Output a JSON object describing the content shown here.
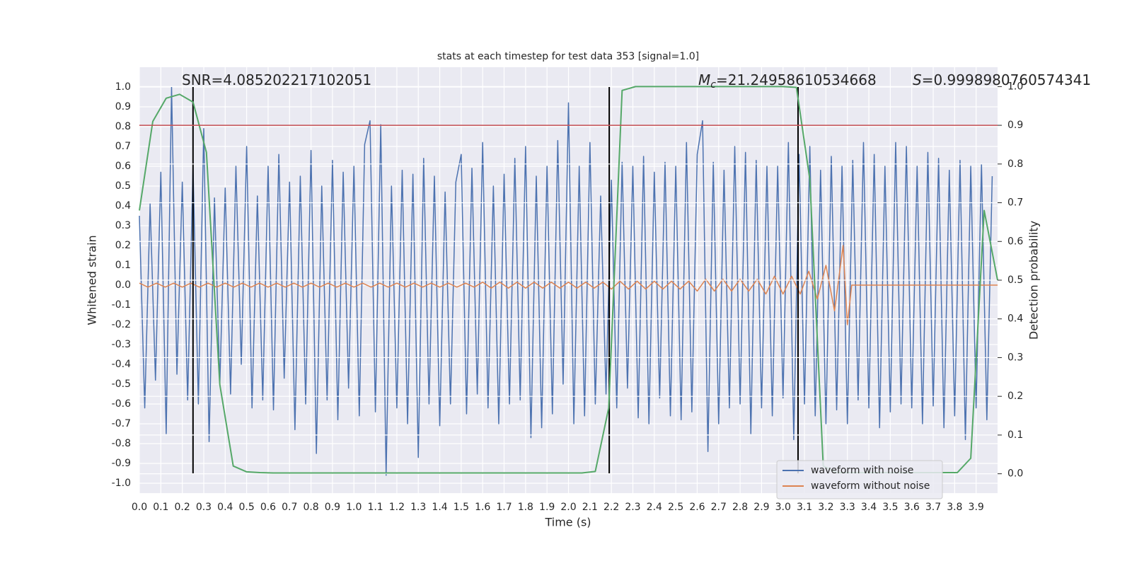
{
  "chart_data": {
    "type": "line",
    "title": "stats at each timestep for test data 353 [signal=1.0]",
    "xlabel": "Time (s)",
    "ylabel": "Whitened strain",
    "y2label": "Detection probability",
    "xlim": [
      0,
      4.0
    ],
    "ylim": [
      -1.05,
      1.1
    ],
    "y2lim": [
      -0.05,
      1.05
    ],
    "grid": true,
    "legend": "lower right",
    "xticks": [
      {
        "value": 0,
        "label": "0.0"
      },
      0.1,
      0.2,
      0.3,
      0.4,
      0.5,
      0.6,
      0.7,
      0.8,
      0.9,
      {
        "value": 1,
        "label": "1.0"
      },
      1.1,
      1.2,
      1.3,
      1.4,
      1.5,
      1.6,
      1.7,
      1.8,
      1.9,
      {
        "value": 2,
        "label": "2.0"
      },
      2.1,
      2.2,
      2.3,
      2.4,
      2.5,
      2.6,
      2.7,
      2.8,
      2.9,
      {
        "value": 3,
        "label": "3.0"
      },
      3.1,
      3.2,
      3.3,
      3.4,
      3.5,
      3.6,
      3.7,
      3.8,
      3.9
    ],
    "yticks": [
      {
        "value": -1,
        "label": "-1.0"
      },
      -0.9,
      -0.8,
      -0.7,
      -0.6,
      -0.5,
      -0.4,
      -0.3,
      -0.2,
      -0.1,
      {
        "value": 0,
        "label": "0.0"
      },
      0.1,
      0.2,
      0.3,
      0.4,
      0.5,
      0.6,
      0.7,
      0.8,
      0.9,
      {
        "value": 1,
        "label": "1.0"
      }
    ],
    "y2ticks": [
      {
        "value": 0,
        "label": "0.0"
      },
      0.1,
      0.2,
      0.3,
      0.4,
      0.5,
      0.6,
      0.7,
      0.8,
      0.9,
      {
        "value": 1,
        "label": "1.0"
      }
    ],
    "series": [
      {
        "name": "waveform with noise",
        "color": "#4c72b0",
        "x": [
          0,
          0.025,
          0.05,
          0.075,
          0.1,
          0.125,
          0.15,
          0.175,
          0.2,
          0.225,
          0.25,
          0.275,
          0.3,
          0.325,
          0.35,
          0.375,
          0.4,
          0.425,
          0.45,
          0.475,
          0.5,
          0.525,
          0.55,
          0.575,
          0.6,
          0.625,
          0.65,
          0.675,
          0.7,
          0.725,
          0.75,
          0.775,
          0.8,
          0.825,
          0.85,
          0.875,
          0.9,
          0.925,
          0.95,
          0.975,
          1.0,
          1.025,
          1.05,
          1.075,
          1.1,
          1.125,
          1.15,
          1.175,
          1.2,
          1.225,
          1.25,
          1.275,
          1.3,
          1.325,
          1.35,
          1.375,
          1.4,
          1.425,
          1.45,
          1.475,
          1.5,
          1.525,
          1.55,
          1.575,
          1.6,
          1.625,
          1.65,
          1.675,
          1.7,
          1.725,
          1.75,
          1.775,
          1.8,
          1.825,
          1.85,
          1.875,
          1.9,
          1.925,
          1.95,
          1.975,
          2.0,
          2.025,
          2.05,
          2.075,
          2.1,
          2.125,
          2.15,
          2.175,
          2.2,
          2.225,
          2.25,
          2.275,
          2.3,
          2.325,
          2.35,
          2.375,
          2.4,
          2.425,
          2.45,
          2.475,
          2.5,
          2.525,
          2.55,
          2.575,
          2.6,
          2.625,
          2.65,
          2.675,
          2.7,
          2.725,
          2.75,
          2.775,
          2.8,
          2.825,
          2.85,
          2.875,
          2.9,
          2.925,
          2.95,
          2.975,
          3.0,
          3.025,
          3.05,
          3.075,
          3.1,
          3.125,
          3.15,
          3.175,
          3.2,
          3.225,
          3.25,
          3.275,
          3.3,
          3.325,
          3.35,
          3.375,
          3.4,
          3.425,
          3.45,
          3.475,
          3.5,
          3.525,
          3.55,
          3.575,
          3.6,
          3.625,
          3.65,
          3.675,
          3.7,
          3.725,
          3.75,
          3.775,
          3.8,
          3.825,
          3.85,
          3.875,
          3.9,
          3.925,
          3.95,
          3.975
        ],
        "values": [
          0.35,
          -0.62,
          0.41,
          -0.48,
          0.57,
          -0.75,
          1.0,
          -0.45,
          0.52,
          -0.58,
          0.6,
          -0.6,
          0.79,
          -0.79,
          0.44,
          -0.5,
          0.49,
          -0.55,
          0.6,
          -0.4,
          0.7,
          -0.62,
          0.45,
          -0.58,
          0.6,
          -0.63,
          0.66,
          -0.47,
          0.52,
          -0.73,
          0.55,
          -0.6,
          0.68,
          -0.85,
          0.5,
          -0.58,
          0.63,
          -0.68,
          0.57,
          -0.52,
          0.6,
          -0.66,
          0.71,
          0.83,
          -0.64,
          0.81,
          -0.96,
          0.5,
          -0.62,
          0.58,
          -0.7,
          0.56,
          -0.87,
          0.64,
          -0.6,
          0.55,
          -0.71,
          0.47,
          -0.6,
          0.52,
          0.66,
          -0.65,
          0.59,
          -0.55,
          0.72,
          -0.62,
          0.5,
          -0.7,
          0.56,
          -0.6,
          0.64,
          -0.58,
          0.7,
          -0.77,
          0.55,
          -0.72,
          0.6,
          -0.65,
          0.73,
          -0.5,
          0.92,
          -0.7,
          0.6,
          -0.66,
          0.72,
          -0.6,
          0.45,
          -0.55,
          0.53,
          -0.62,
          0.62,
          -0.52,
          0.6,
          -0.67,
          0.65,
          -0.7,
          0.57,
          -0.57,
          0.62,
          -0.66,
          0.6,
          -0.68,
          0.72,
          -0.64,
          0.66,
          0.83,
          -0.84,
          0.62,
          -0.7,
          0.58,
          -0.62,
          0.7,
          -0.6,
          0.67,
          -0.75,
          0.63,
          -0.62,
          0.6,
          -0.66,
          0.6,
          -0.57,
          0.72,
          -0.78,
          0.66,
          -0.6,
          0.7,
          -0.66,
          0.58,
          -0.7,
          0.65,
          -0.63,
          0.6,
          -0.7,
          0.63,
          -0.58,
          0.72,
          -0.62,
          0.66,
          -0.72,
          0.6,
          -0.64,
          0.72,
          -0.6,
          0.7,
          -0.62,
          0.6,
          -0.7,
          0.67,
          -0.61,
          0.64,
          -0.72,
          0.58,
          -0.66,
          0.63,
          -0.78,
          0.6,
          -0.62,
          0.61,
          -0.68,
          0.55
        ]
      },
      {
        "name": "waveform without noise",
        "color": "#dd8452",
        "x": [
          0,
          0.04,
          0.08,
          0.12,
          0.16,
          0.2,
          0.24,
          0.28,
          0.32,
          0.36,
          0.4,
          0.44,
          0.48,
          0.52,
          0.56,
          0.6,
          0.64,
          0.68,
          0.72,
          0.76,
          0.8,
          0.84,
          0.88,
          0.92,
          0.96,
          1.0,
          1.04,
          1.08,
          1.12,
          1.16,
          1.2,
          1.24,
          1.28,
          1.32,
          1.36,
          1.4,
          1.44,
          1.48,
          1.52,
          1.56,
          1.6,
          1.64,
          1.68,
          1.72,
          1.76,
          1.8,
          1.84,
          1.88,
          1.92,
          1.96,
          2.0,
          2.04,
          2.08,
          2.12,
          2.16,
          2.2,
          2.24,
          2.28,
          2.32,
          2.36,
          2.4,
          2.44,
          2.48,
          2.52,
          2.56,
          2.6,
          2.64,
          2.68,
          2.72,
          2.76,
          2.8,
          2.84,
          2.88,
          2.92,
          2.96,
          3.0,
          3.04,
          3.08,
          3.12,
          3.16,
          3.2,
          3.24,
          3.28,
          3.3,
          3.32,
          4.0
        ],
        "values": [
          0.01,
          -0.01,
          0.01,
          -0.01,
          0.01,
          -0.01,
          0.01,
          -0.01,
          0.01,
          -0.01,
          0.01,
          -0.01,
          0.01,
          -0.01,
          0.01,
          -0.01,
          0.01,
          -0.01,
          0.01,
          -0.01,
          0.01,
          -0.01,
          0.01,
          -0.01,
          0.01,
          -0.01,
          0.01,
          -0.01,
          0.01,
          -0.01,
          0.01,
          -0.01,
          0.01,
          -0.01,
          0.01,
          -0.01,
          0.01,
          -0.01,
          0.01,
          -0.01,
          0.015,
          -0.015,
          0.015,
          -0.015,
          0.015,
          -0.015,
          0.015,
          -0.015,
          0.015,
          -0.015,
          0.015,
          -0.015,
          0.015,
          -0.015,
          0.015,
          -0.02,
          0.02,
          -0.02,
          0.02,
          -0.02,
          0.02,
          -0.02,
          0.02,
          -0.02,
          0.02,
          -0.03,
          0.03,
          -0.03,
          0.03,
          -0.03,
          0.03,
          -0.03,
          0.03,
          -0.045,
          0.045,
          -0.045,
          0.045,
          -0.045,
          0.07,
          -0.07,
          0.1,
          -0.13,
          0.2,
          -0.2,
          0,
          0
        ]
      },
      {
        "color": "#55a868",
        "axis": "y2",
        "x": [
          0,
          0.0625,
          0.125,
          0.1875,
          0.25,
          0.3125,
          0.375,
          0.4375,
          0.5,
          0.5625,
          0.625,
          0.6875,
          0.75,
          0.8125,
          0.875,
          0.9375,
          1.0,
          1.0625,
          1.125,
          1.1875,
          1.25,
          1.3125,
          1.375,
          1.4375,
          1.5,
          1.5625,
          1.625,
          1.6875,
          1.75,
          1.8125,
          1.875,
          1.9375,
          2.0,
          2.0625,
          2.125,
          2.1875,
          2.25,
          2.3125,
          2.375,
          2.4375,
          2.5,
          2.5625,
          2.625,
          2.6875,
          2.75,
          2.8125,
          2.875,
          2.9375,
          3.0,
          3.0625,
          3.125,
          3.1875,
          3.25,
          3.3125,
          3.375,
          3.4375,
          3.5,
          3.5625,
          3.625,
          3.6875,
          3.75,
          3.8125,
          3.875,
          3.9375,
          4.0
        ],
        "values": [
          0.68,
          0.91,
          0.97,
          0.98,
          0.96,
          0.83,
          0.23,
          0.02,
          0.005,
          0.003,
          0.002,
          0.002,
          0.002,
          0.002,
          0.002,
          0.002,
          0.002,
          0.002,
          0.002,
          0.002,
          0.002,
          0.002,
          0.002,
          0.002,
          0.002,
          0.002,
          0.002,
          0.002,
          0.002,
          0.002,
          0.002,
          0.002,
          0.002,
          0.002,
          0.006,
          0.17,
          0.99,
          1.0,
          1.0,
          1.0,
          1.0,
          1.0,
          1.0,
          1.0,
          1.0,
          1.0,
          1.0,
          1.0,
          1.0,
          0.998,
          0.76,
          0.02,
          0.003,
          0.003,
          0.003,
          0.003,
          0.003,
          0.003,
          0.003,
          0.003,
          0.003,
          0.003,
          0.04,
          0.68,
          0.5
        ]
      }
    ],
    "vlines": {
      "color": "#000000",
      "axis": "y2",
      "span": [
        0,
        1
      ],
      "x": [
        0.25,
        2.19,
        3.07
      ]
    },
    "hline": {
      "color": "#c44e52",
      "axis": "y2",
      "value": 0.9
    },
    "annotations": [
      {
        "text": "SNR=4.085202217102051"
      },
      {
        "symbol": "M",
        "subscript": "c",
        "text": "=21.24958610534668"
      },
      {
        "symbol": "S",
        "text": "=0.9998980760574341"
      }
    ]
  }
}
